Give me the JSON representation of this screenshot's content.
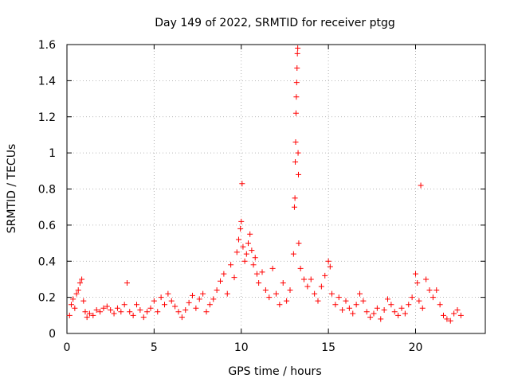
{
  "chart_data": {
    "type": "scatter",
    "title": "Day 149 of 2022, SRMTID for receiver ptgg",
    "xlabel": "GPS time / hours",
    "ylabel": "SRMTID / TECUs",
    "xlim": [
      0,
      24
    ],
    "ylim": [
      0,
      1.6
    ],
    "xticks": [
      0,
      5,
      10,
      15,
      20
    ],
    "yticks": [
      0,
      0.2,
      0.4,
      0.6,
      0.8,
      1,
      1.2,
      1.4,
      1.6
    ],
    "xtick_labels": [
      "0",
      "5",
      "10",
      "15",
      "20"
    ],
    "ytick_labels": [
      "0",
      "0.2",
      "0.4",
      "0.6",
      "0.8",
      "1",
      "1.2",
      "1.4",
      "1.6"
    ],
    "grid": true,
    "marker": "+",
    "series": [
      {
        "name": "SRMTID",
        "color": "#ff0000",
        "points": [
          [
            0.15,
            0.1
          ],
          [
            0.25,
            0.16
          ],
          [
            0.35,
            0.19
          ],
          [
            0.45,
            0.14
          ],
          [
            0.55,
            0.22
          ],
          [
            0.65,
            0.24
          ],
          [
            0.75,
            0.28
          ],
          [
            0.85,
            0.3
          ],
          [
            0.95,
            0.18
          ],
          [
            1.05,
            0.12
          ],
          [
            1.15,
            0.09
          ],
          [
            1.3,
            0.11
          ],
          [
            1.5,
            0.1
          ],
          [
            1.7,
            0.13
          ],
          [
            1.9,
            0.12
          ],
          [
            2.1,
            0.14
          ],
          [
            2.3,
            0.15
          ],
          [
            2.5,
            0.13
          ],
          [
            2.7,
            0.11
          ],
          [
            2.9,
            0.14
          ],
          [
            3.1,
            0.12
          ],
          [
            3.3,
            0.16
          ],
          [
            3.45,
            0.28
          ],
          [
            3.6,
            0.12
          ],
          [
            3.8,
            0.1
          ],
          [
            4.0,
            0.16
          ],
          [
            4.2,
            0.13
          ],
          [
            4.4,
            0.09
          ],
          [
            4.6,
            0.12
          ],
          [
            4.8,
            0.14
          ],
          [
            5.0,
            0.18
          ],
          [
            5.2,
            0.12
          ],
          [
            5.4,
            0.2
          ],
          [
            5.6,
            0.16
          ],
          [
            5.8,
            0.22
          ],
          [
            6.0,
            0.18
          ],
          [
            6.2,
            0.15
          ],
          [
            6.4,
            0.12
          ],
          [
            6.6,
            0.09
          ],
          [
            6.8,
            0.13
          ],
          [
            7.0,
            0.17
          ],
          [
            7.2,
            0.21
          ],
          [
            7.4,
            0.14
          ],
          [
            7.6,
            0.19
          ],
          [
            7.8,
            0.22
          ],
          [
            8.0,
            0.12
          ],
          [
            8.2,
            0.16
          ],
          [
            8.4,
            0.19
          ],
          [
            8.6,
            0.24
          ],
          [
            8.8,
            0.29
          ],
          [
            9.0,
            0.33
          ],
          [
            9.2,
            0.22
          ],
          [
            9.4,
            0.38
          ],
          [
            9.6,
            0.31
          ],
          [
            9.75,
            0.45
          ],
          [
            9.85,
            0.52
          ],
          [
            9.95,
            0.58
          ],
          [
            10.0,
            0.62
          ],
          [
            10.05,
            0.83
          ],
          [
            10.1,
            0.48
          ],
          [
            10.2,
            0.4
          ],
          [
            10.3,
            0.44
          ],
          [
            10.4,
            0.5
          ],
          [
            10.5,
            0.55
          ],
          [
            10.6,
            0.46
          ],
          [
            10.7,
            0.38
          ],
          [
            10.8,
            0.42
          ],
          [
            10.9,
            0.33
          ],
          [
            11.0,
            0.28
          ],
          [
            11.2,
            0.34
          ],
          [
            11.4,
            0.24
          ],
          [
            11.6,
            0.2
          ],
          [
            11.8,
            0.36
          ],
          [
            12.0,
            0.22
          ],
          [
            12.2,
            0.16
          ],
          [
            12.4,
            0.28
          ],
          [
            12.6,
            0.18
          ],
          [
            12.8,
            0.24
          ],
          [
            13.0,
            0.44
          ],
          [
            13.05,
            0.7
          ],
          [
            13.08,
            0.75
          ],
          [
            13.1,
            0.95
          ],
          [
            13.12,
            1.06
          ],
          [
            13.14,
            1.22
          ],
          [
            13.16,
            1.31
          ],
          [
            13.18,
            1.39
          ],
          [
            13.2,
            1.47
          ],
          [
            13.22,
            1.55
          ],
          [
            13.24,
            1.58
          ],
          [
            13.26,
            1.0
          ],
          [
            13.28,
            0.88
          ],
          [
            13.3,
            0.5
          ],
          [
            13.4,
            0.36
          ],
          [
            13.6,
            0.3
          ],
          [
            13.8,
            0.26
          ],
          [
            14.0,
            0.3
          ],
          [
            14.2,
            0.22
          ],
          [
            14.4,
            0.18
          ],
          [
            14.6,
            0.26
          ],
          [
            14.8,
            0.32
          ],
          [
            15.0,
            0.4
          ],
          [
            15.1,
            0.37
          ],
          [
            15.2,
            0.22
          ],
          [
            15.4,
            0.16
          ],
          [
            15.6,
            0.2
          ],
          [
            15.8,
            0.13
          ],
          [
            16.0,
            0.18
          ],
          [
            16.2,
            0.14
          ],
          [
            16.4,
            0.11
          ],
          [
            16.6,
            0.16
          ],
          [
            16.8,
            0.22
          ],
          [
            17.0,
            0.18
          ],
          [
            17.2,
            0.12
          ],
          [
            17.4,
            0.09
          ],
          [
            17.6,
            0.11
          ],
          [
            17.8,
            0.14
          ],
          [
            18.0,
            0.08
          ],
          [
            18.2,
            0.13
          ],
          [
            18.4,
            0.19
          ],
          [
            18.6,
            0.16
          ],
          [
            18.8,
            0.12
          ],
          [
            19.0,
            0.1
          ],
          [
            19.2,
            0.14
          ],
          [
            19.4,
            0.11
          ],
          [
            19.6,
            0.16
          ],
          [
            19.8,
            0.2
          ],
          [
            20.0,
            0.33
          ],
          [
            20.1,
            0.28
          ],
          [
            20.2,
            0.18
          ],
          [
            20.3,
            0.82
          ],
          [
            20.4,
            0.14
          ],
          [
            20.6,
            0.3
          ],
          [
            20.8,
            0.24
          ],
          [
            21.0,
            0.2
          ],
          [
            21.2,
            0.24
          ],
          [
            21.4,
            0.16
          ],
          [
            21.6,
            0.1
          ],
          [
            21.8,
            0.08
          ],
          [
            22.0,
            0.07
          ],
          [
            22.2,
            0.11
          ],
          [
            22.4,
            0.13
          ],
          [
            22.6,
            0.1
          ]
        ]
      }
    ]
  }
}
